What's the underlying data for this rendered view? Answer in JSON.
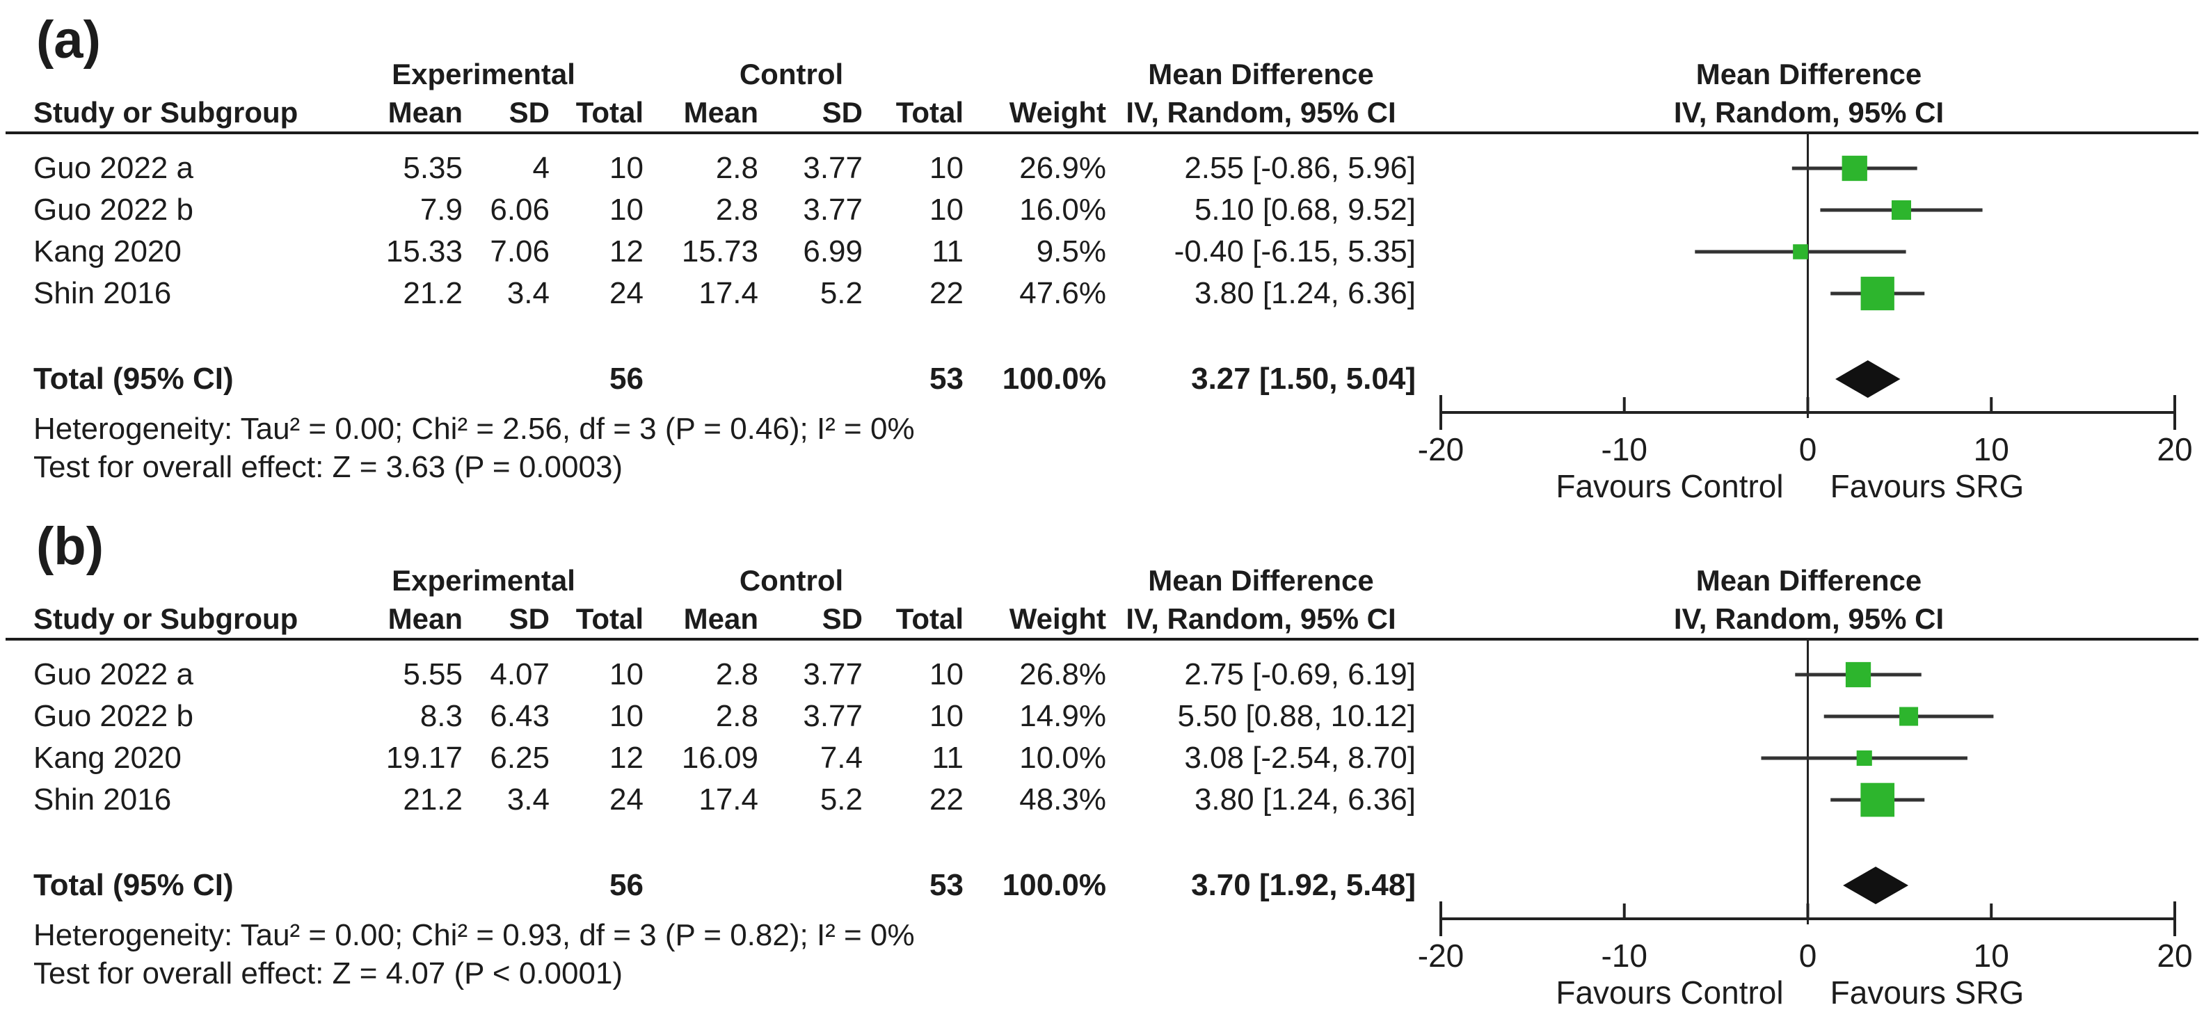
{
  "figure": {
    "square_color": "#2db52d",
    "ci_line_color": "#333333",
    "diamond_color": "#111111",
    "axis_color": "#222222"
  },
  "panels": [
    {
      "label": "(a)",
      "headers": {
        "study": "Study or Subgroup",
        "group1": "Experimental",
        "group2": "Control",
        "mean": "Mean",
        "sd": "SD",
        "total": "Total",
        "weight": "Weight",
        "effect": "Mean Difference",
        "effect_method": "IV, Random, 95% CI",
        "plot_effect": "Mean Difference",
        "plot_method": "IV, Random, 95% CI"
      },
      "studies": [
        {
          "name": "Guo 2022 a",
          "mean_exp": "5.35",
          "sd_exp": "4",
          "total_exp": "10",
          "mean_ctl": "2.8",
          "sd_ctl": "3.77",
          "total_ctl": "10",
          "weight": "26.9%",
          "ci_text": "2.55 [-0.86, 5.96]",
          "est": 2.55,
          "lo": -0.86,
          "hi": 5.96,
          "weight_value": 26.9
        },
        {
          "name": "Guo 2022 b",
          "mean_exp": "7.9",
          "sd_exp": "6.06",
          "total_exp": "10",
          "mean_ctl": "2.8",
          "sd_ctl": "3.77",
          "total_ctl": "10",
          "weight": "16.0%",
          "ci_text": "5.10 [0.68, 9.52]",
          "est": 5.1,
          "lo": 0.68,
          "hi": 9.52,
          "weight_value": 16.0
        },
        {
          "name": "Kang 2020",
          "mean_exp": "15.33",
          "sd_exp": "7.06",
          "total_exp": "12",
          "mean_ctl": "15.73",
          "sd_ctl": "6.99",
          "total_ctl": "11",
          "weight": "9.5%",
          "ci_text": "-0.40 [-6.15, 5.35]",
          "est": -0.4,
          "lo": -6.15,
          "hi": 5.35,
          "weight_value": 9.5
        },
        {
          "name": "Shin 2016",
          "mean_exp": "21.2",
          "sd_exp": "3.4",
          "total_exp": "24",
          "mean_ctl": "17.4",
          "sd_ctl": "5.2",
          "total_ctl": "22",
          "weight": "47.6%",
          "ci_text": "3.80 [1.24, 6.36]",
          "est": 3.8,
          "lo": 1.24,
          "hi": 6.36,
          "weight_value": 47.6
        }
      ],
      "total_row": {
        "label": "Total (95% CI)",
        "total_exp": "56",
        "total_ctl": "53",
        "weight": "100.0%",
        "ci_text": "3.27 [1.50, 5.04]",
        "est": 3.27,
        "lo": 1.5,
        "hi": 5.04
      },
      "heterogeneity": "Heterogeneity: Tau² = 0.00; Chi² = 2.56, df = 3 (P = 0.46); I² = 0%",
      "overall_effect": "Test for overall effect: Z = 3.63 (P = 0.0003)",
      "axis": {
        "min": -20,
        "max": 20,
        "ticks": [
          "-20",
          "-10",
          "0",
          "10",
          "20"
        ],
        "tick_values": [
          -20,
          -10,
          0,
          10,
          20
        ],
        "favours_left": "Favours Control",
        "favours_right": "Favours SRG"
      }
    },
    {
      "label": "(b)",
      "headers": {
        "study": "Study or Subgroup",
        "group1": "Experimental",
        "group2": "Control",
        "mean": "Mean",
        "sd": "SD",
        "total": "Total",
        "weight": "Weight",
        "effect": "Mean Difference",
        "effect_method": "IV, Random, 95% CI",
        "plot_effect": "Mean Difference",
        "plot_method": "IV, Random, 95% CI"
      },
      "studies": [
        {
          "name": "Guo 2022 a",
          "mean_exp": "5.55",
          "sd_exp": "4.07",
          "total_exp": "10",
          "mean_ctl": "2.8",
          "sd_ctl": "3.77",
          "total_ctl": "10",
          "weight": "26.8%",
          "ci_text": "2.75 [-0.69, 6.19]",
          "est": 2.75,
          "lo": -0.69,
          "hi": 6.19,
          "weight_value": 26.8
        },
        {
          "name": "Guo 2022 b",
          "mean_exp": "8.3",
          "sd_exp": "6.43",
          "total_exp": "10",
          "mean_ctl": "2.8",
          "sd_ctl": "3.77",
          "total_ctl": "10",
          "weight": "14.9%",
          "ci_text": "5.50 [0.88, 10.12]",
          "est": 5.5,
          "lo": 0.88,
          "hi": 10.12,
          "weight_value": 14.9
        },
        {
          "name": "Kang 2020",
          "mean_exp": "19.17",
          "sd_exp": "6.25",
          "total_exp": "12",
          "mean_ctl": "16.09",
          "sd_ctl": "7.4",
          "total_ctl": "11",
          "weight": "10.0%",
          "ci_text": "3.08 [-2.54, 8.70]",
          "est": 3.08,
          "lo": -2.54,
          "hi": 8.7,
          "weight_value": 10.0
        },
        {
          "name": "Shin 2016",
          "mean_exp": "21.2",
          "sd_exp": "3.4",
          "total_exp": "24",
          "mean_ctl": "17.4",
          "sd_ctl": "5.2",
          "total_ctl": "22",
          "weight": "48.3%",
          "ci_text": "3.80 [1.24, 6.36]",
          "est": 3.8,
          "lo": 1.24,
          "hi": 6.36,
          "weight_value": 48.3
        }
      ],
      "total_row": {
        "label": "Total (95% CI)",
        "total_exp": "56",
        "total_ctl": "53",
        "weight": "100.0%",
        "ci_text": "3.70 [1.92, 5.48]",
        "est": 3.7,
        "lo": 1.92,
        "hi": 5.48
      },
      "heterogeneity": "Heterogeneity: Tau² = 0.00; Chi² = 0.93, df = 3 (P = 0.82); I² = 0%",
      "overall_effect": "Test for overall effect: Z = 4.07 (P < 0.0001)",
      "axis": {
        "min": -20,
        "max": 20,
        "ticks": [
          "-20",
          "-10",
          "0",
          "10",
          "20"
        ],
        "tick_values": [
          -20,
          -10,
          0,
          10,
          20
        ],
        "favours_left": "Favours Control",
        "favours_right": "Favours SRG"
      }
    }
  ],
  "chart_data": [
    {
      "type": "forest",
      "panel": "(a)",
      "title": "Mean Difference IV, Random, 95% CI",
      "xlim": [
        -20,
        20
      ],
      "x_ticks": [
        -20,
        -10,
        0,
        10,
        20
      ],
      "xlabel_left": "Favours Control",
      "xlabel_right": "Favours SRG",
      "studies": [
        {
          "study": "Guo 2022 a",
          "experimental": {
            "mean": 5.35,
            "sd": 4,
            "total": 10
          },
          "control": {
            "mean": 2.8,
            "sd": 3.77,
            "total": 10
          },
          "weight_pct": 26.9,
          "md": 2.55,
          "ci95": [
            -0.86,
            5.96
          ]
        },
        {
          "study": "Guo 2022 b",
          "experimental": {
            "mean": 7.9,
            "sd": 6.06,
            "total": 10
          },
          "control": {
            "mean": 2.8,
            "sd": 3.77,
            "total": 10
          },
          "weight_pct": 16.0,
          "md": 5.1,
          "ci95": [
            0.68,
            9.52
          ]
        },
        {
          "study": "Kang 2020",
          "experimental": {
            "mean": 15.33,
            "sd": 7.06,
            "total": 12
          },
          "control": {
            "mean": 15.73,
            "sd": 6.99,
            "total": 11
          },
          "weight_pct": 9.5,
          "md": -0.4,
          "ci95": [
            -6.15,
            5.35
          ]
        },
        {
          "study": "Shin 2016",
          "experimental": {
            "mean": 21.2,
            "sd": 3.4,
            "total": 24
          },
          "control": {
            "mean": 17.4,
            "sd": 5.2,
            "total": 22
          },
          "weight_pct": 47.6,
          "md": 3.8,
          "ci95": [
            1.24,
            6.36
          ]
        }
      ],
      "total": {
        "total_exp": 56,
        "total_ctl": 53,
        "weight_pct": 100.0,
        "md": 3.27,
        "ci95": [
          1.5,
          5.04
        ]
      },
      "heterogeneity": {
        "tau2": 0.0,
        "chi2": 2.56,
        "df": 3,
        "p": 0.46,
        "i2_pct": 0
      },
      "overall_effect": {
        "z": 3.63,
        "p": "0.0003"
      }
    },
    {
      "type": "forest",
      "panel": "(b)",
      "title": "Mean Difference IV, Random, 95% CI",
      "xlim": [
        -20,
        20
      ],
      "x_ticks": [
        -20,
        -10,
        0,
        10,
        20
      ],
      "xlabel_left": "Favours Control",
      "xlabel_right": "Favours SRG",
      "studies": [
        {
          "study": "Guo 2022 a",
          "experimental": {
            "mean": 5.55,
            "sd": 4.07,
            "total": 10
          },
          "control": {
            "mean": 2.8,
            "sd": 3.77,
            "total": 10
          },
          "weight_pct": 26.8,
          "md": 2.75,
          "ci95": [
            -0.69,
            6.19
          ]
        },
        {
          "study": "Guo 2022 b",
          "experimental": {
            "mean": 8.3,
            "sd": 6.43,
            "total": 10
          },
          "control": {
            "mean": 2.8,
            "sd": 3.77,
            "total": 10
          },
          "weight_pct": 14.9,
          "md": 5.5,
          "ci95": [
            0.88,
            10.12
          ]
        },
        {
          "study": "Kang 2020",
          "experimental": {
            "mean": 19.17,
            "sd": 6.25,
            "total": 12
          },
          "control": {
            "mean": 16.09,
            "sd": 7.4,
            "total": 11
          },
          "weight_pct": 10.0,
          "md": 3.08,
          "ci95": [
            -2.54,
            8.7
          ]
        },
        {
          "study": "Shin 2016",
          "experimental": {
            "mean": 21.2,
            "sd": 3.4,
            "total": 24
          },
          "control": {
            "mean": 17.4,
            "sd": 5.2,
            "total": 22
          },
          "weight_pct": 48.3,
          "md": 3.8,
          "ci95": [
            1.24,
            6.36
          ]
        }
      ],
      "total": {
        "total_exp": 56,
        "total_ctl": 53,
        "weight_pct": 100.0,
        "md": 3.7,
        "ci95": [
          1.92,
          5.48
        ]
      },
      "heterogeneity": {
        "tau2": 0.0,
        "chi2": 0.93,
        "df": 3,
        "p": 0.82,
        "i2_pct": 0
      },
      "overall_effect": {
        "z": 4.07,
        "p": "< 0.0001"
      }
    }
  ]
}
